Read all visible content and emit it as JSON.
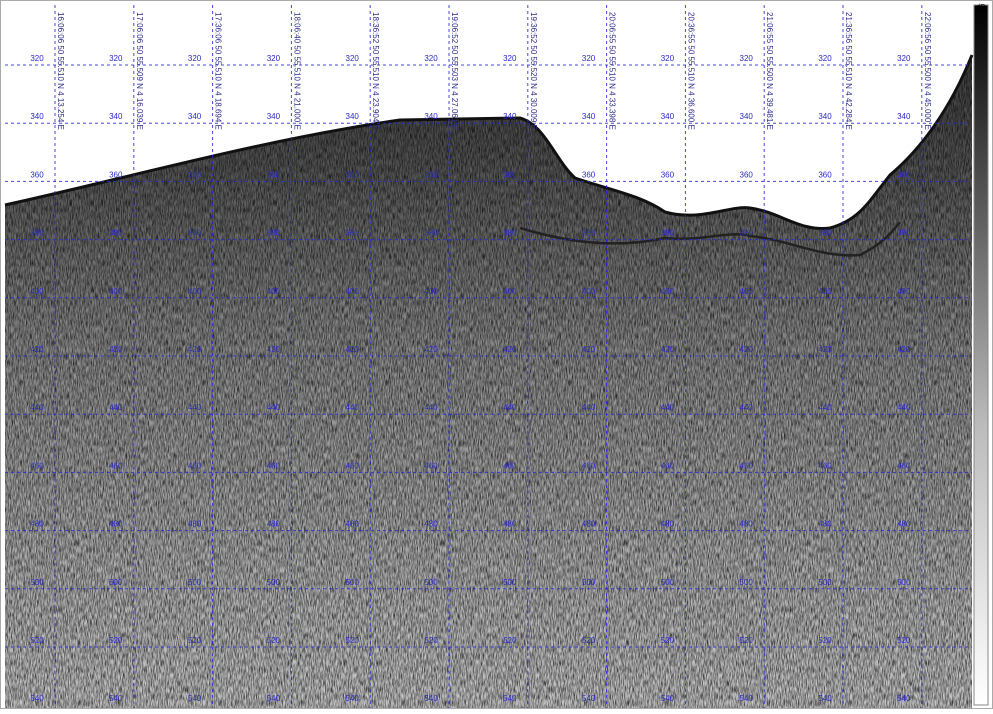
{
  "depths": [
    320,
    340,
    360,
    380,
    400,
    420,
    440,
    460,
    480,
    500,
    520,
    540
  ],
  "fixes": [
    "16:06:06 50 55.510 N 4 13.254 E",
    "17:06:06 50 55.509 N 4 16.039 E",
    "17:36:06 50 55.510 N 4 18.694 E",
    "18:06:40 50 55.510 N 4 21.000 E",
    "18:36:52 50 55.510 N 4 23.904 E",
    "19:06:52 50 55.503 N 4 27.061 E",
    "19:36:52 50 55.520 N 4 30.009 E",
    "20:06:55 50 55.510 N 4 33.398 E",
    "20:36:55 50 55.510 N 4 36.600 E",
    "21:06:55 50 55.500 N 4 39.481 E",
    "21:36:56 50 55.510 N 4 42.284 E",
    "22:06:56 50 55.500 N 4 45.000 E"
  ],
  "scale_unit": "dB"
}
